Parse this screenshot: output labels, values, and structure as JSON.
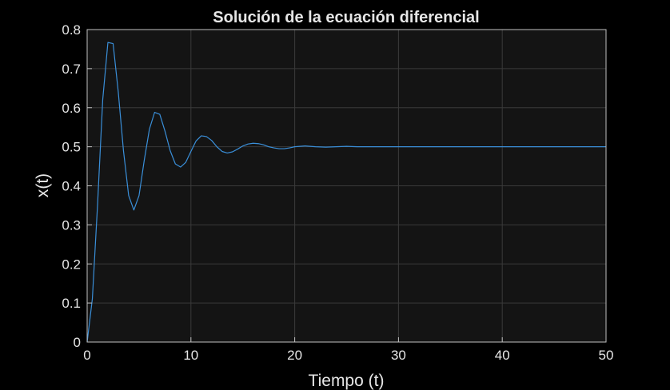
{
  "colors": {
    "figure_bg": "#000000",
    "axes_bg": "#141414",
    "axes_edge": "#bfbfbf",
    "grid": "#3a3a3a",
    "text": "#e6e6e6",
    "line": "#3a8fd9"
  },
  "chart_data": {
    "type": "line",
    "title": "Solución de la ecuación diferencial",
    "xlabel": "Tiempo (t)",
    "ylabel": "x(t)",
    "xlim": [
      0,
      50
    ],
    "ylim": [
      0,
      0.8
    ],
    "xticks": [
      0,
      10,
      20,
      30,
      40,
      50
    ],
    "yticks": [
      0,
      0.1,
      0.2,
      0.3,
      0.4,
      0.5,
      0.6,
      0.7,
      0.8
    ],
    "xtick_labels": [
      "0",
      "10",
      "20",
      "30",
      "40",
      "50"
    ],
    "ytick_labels": [
      "0",
      "0.1",
      "0.2",
      "0.3",
      "0.4",
      "0.5",
      "0.6",
      "0.7",
      "0.8"
    ],
    "grid": true,
    "series": [
      {
        "x": [
          0,
          0.5,
          1,
          1.5,
          2,
          2.5,
          3,
          3.5,
          4,
          4.5,
          5,
          5.5,
          6,
          6.5,
          7,
          7.5,
          8,
          8.5,
          9,
          9.5,
          10,
          10.5,
          11,
          11.5,
          12,
          12.5,
          13,
          13.5,
          14,
          14.5,
          15,
          15.5,
          16,
          16.5,
          17,
          17.5,
          18,
          18.5,
          19,
          19.5,
          20,
          21,
          22,
          23,
          24,
          25,
          26,
          27,
          28,
          29,
          30,
          32,
          34,
          36,
          38,
          40,
          42,
          44,
          46,
          48,
          50
        ],
        "y": [
          0,
          0.11,
          0.35,
          0.62,
          0.767,
          0.764,
          0.64,
          0.49,
          0.375,
          0.338,
          0.375,
          0.465,
          0.545,
          0.588,
          0.583,
          0.54,
          0.49,
          0.456,
          0.448,
          0.46,
          0.488,
          0.515,
          0.528,
          0.526,
          0.516,
          0.5,
          0.488,
          0.484,
          0.487,
          0.494,
          0.502,
          0.507,
          0.509,
          0.508,
          0.505,
          0.5,
          0.497,
          0.495,
          0.495,
          0.497,
          0.5,
          0.502,
          0.5,
          0.499,
          0.5,
          0.501,
          0.5,
          0.5,
          0.5,
          0.5,
          0.5,
          0.5,
          0.5,
          0.5,
          0.5,
          0.5,
          0.5,
          0.5,
          0.5,
          0.5,
          0.5
        ]
      }
    ]
  }
}
